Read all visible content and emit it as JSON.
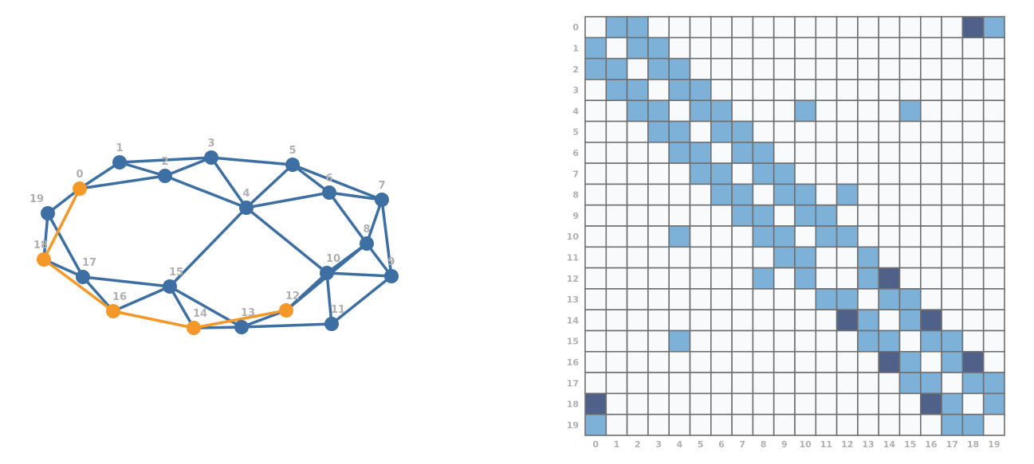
{
  "graph": {
    "nodes": [
      {
        "id": "0",
        "highlighted": true
      },
      {
        "id": "1",
        "highlighted": false
      },
      {
        "id": "2",
        "highlighted": false
      },
      {
        "id": "3",
        "highlighted": false
      },
      {
        "id": "4",
        "highlighted": false
      },
      {
        "id": "5",
        "highlighted": false
      },
      {
        "id": "6",
        "highlighted": false
      },
      {
        "id": "7",
        "highlighted": false
      },
      {
        "id": "8",
        "highlighted": false
      },
      {
        "id": "9",
        "highlighted": false
      },
      {
        "id": "10",
        "highlighted": false
      },
      {
        "id": "11",
        "highlighted": false
      },
      {
        "id": "12",
        "highlighted": true
      },
      {
        "id": "13",
        "highlighted": false
      },
      {
        "id": "14",
        "highlighted": true
      },
      {
        "id": "15",
        "highlighted": false
      },
      {
        "id": "16",
        "highlighted": true
      },
      {
        "id": "17",
        "highlighted": false
      },
      {
        "id": "18",
        "highlighted": true
      },
      {
        "id": "19",
        "highlighted": false
      }
    ],
    "edges": [
      [
        0,
        1
      ],
      [
        0,
        2
      ],
      [
        0,
        19
      ],
      [
        1,
        2
      ],
      [
        1,
        3
      ],
      [
        2,
        3
      ],
      [
        2,
        4
      ],
      [
        3,
        4
      ],
      [
        3,
        5
      ],
      [
        4,
        5
      ],
      [
        4,
        6
      ],
      [
        4,
        10
      ],
      [
        4,
        15
      ],
      [
        5,
        6
      ],
      [
        5,
        7
      ],
      [
        6,
        7
      ],
      [
        6,
        8
      ],
      [
        7,
        8
      ],
      [
        7,
        9
      ],
      [
        8,
        9
      ],
      [
        8,
        10
      ],
      [
        8,
        12
      ],
      [
        9,
        10
      ],
      [
        9,
        11
      ],
      [
        10,
        11
      ],
      [
        10,
        12
      ],
      [
        11,
        13
      ],
      [
        12,
        13
      ],
      [
        13,
        14
      ],
      [
        13,
        15
      ],
      [
        14,
        15
      ],
      [
        15,
        16
      ],
      [
        15,
        17
      ],
      [
        16,
        17
      ],
      [
        17,
        18
      ],
      [
        17,
        19
      ],
      [
        18,
        19
      ]
    ],
    "highlighted_path": [
      0,
      18,
      16,
      14,
      12
    ]
  },
  "matrix": {
    "row_labels": [
      "0",
      "1",
      "2",
      "3",
      "4",
      "5",
      "6",
      "7",
      "8",
      "9",
      "10",
      "11",
      "12",
      "13",
      "14",
      "15",
      "16",
      "17",
      "18",
      "19"
    ],
    "col_labels": [
      "0",
      "1",
      "2",
      "3",
      "4",
      "5",
      "6",
      "7",
      "8",
      "9",
      "10",
      "11",
      "12",
      "13",
      "14",
      "15",
      "16",
      "17",
      "18",
      "19"
    ],
    "highlighted_cells": [
      [
        0,
        18
      ],
      [
        12,
        14
      ],
      [
        14,
        12
      ],
      [
        14,
        16
      ],
      [
        16,
        14
      ],
      [
        16,
        18
      ],
      [
        18,
        0
      ],
      [
        18,
        16
      ]
    ]
  },
  "colors": {
    "node": "#3d6fa3",
    "highlight": "#f5982a",
    "edge_cell": "#7eb1d8",
    "path_cell": "#4f6189",
    "empty_cell": "#f8fafc",
    "cell_border": "#6f6f6f",
    "label": "#b0b0b0"
  }
}
